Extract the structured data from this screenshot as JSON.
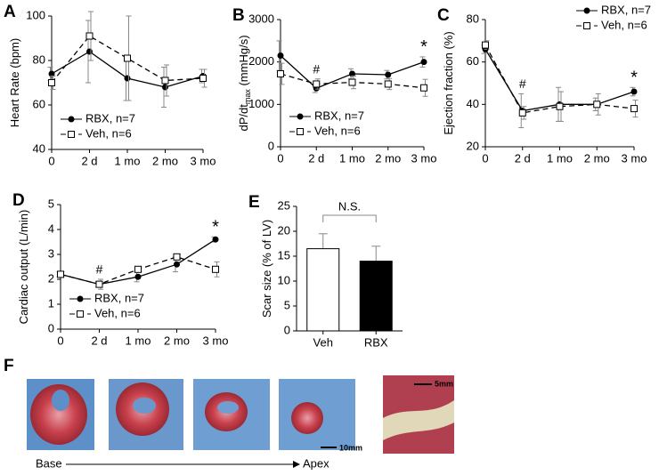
{
  "chart_data": [
    {
      "type": "line",
      "panel_label": "A",
      "ylabel": {
        "main": "Heart Rate (bpm)"
      },
      "categories": [
        "0",
        "2 d",
        "1 mo",
        "2 mo",
        "3 mo"
      ],
      "ylim": [
        40,
        100
      ],
      "yticks": [
        40,
        60,
        80,
        100
      ],
      "legend": "lower left",
      "series": [
        {
          "name": "RBX, n=7",
          "color": "#000000",
          "marker": "circle",
          "linestyle": "solid",
          "values": [
            74,
            84,
            72,
            68,
            73
          ],
          "errors": [
            3,
            14,
            10,
            9,
            3
          ]
        },
        {
          "name": "Veh, n=6",
          "color": "#000000",
          "marker": "square",
          "linestyle": "dashed",
          "values": [
            70,
            91,
            81,
            71,
            72
          ],
          "errors": [
            3,
            11,
            19,
            7,
            4
          ]
        }
      ],
      "annotations": []
    },
    {
      "type": "line",
      "panel_label": "B",
      "ylabel": {
        "main": "dP/dt",
        "sub": "max",
        "unit": " (mmHg/s)"
      },
      "categories": [
        "0",
        "2 d",
        "1 mo",
        "2 mo",
        "3 mo"
      ],
      "ylim": [
        0,
        3000
      ],
      "yticks": [
        0,
        1000,
        2000,
        3000
      ],
      "legend": "lower left",
      "series": [
        {
          "name": "RBX, n=7",
          "color": "#000000",
          "marker": "circle",
          "linestyle": "solid",
          "values": [
            2150,
            1380,
            1720,
            1700,
            2000
          ],
          "errors": [
            350,
            100,
            120,
            100,
            120
          ]
        },
        {
          "name": "Veh, n=6",
          "color": "#000000",
          "marker": "square",
          "linestyle": "dashed",
          "values": [
            1720,
            1480,
            1520,
            1480,
            1390
          ],
          "errors": [
            250,
            120,
            150,
            130,
            200
          ]
        }
      ],
      "annotations": [
        {
          "text": "#",
          "at": "2 d"
        },
        {
          "text": "*",
          "at": "3 mo"
        }
      ]
    },
    {
      "type": "line",
      "panel_label": "C",
      "ylabel": {
        "main": "Ejection fraction (%)"
      },
      "categories": [
        "0",
        "2 d",
        "1 mo",
        "2 mo",
        "3 mo"
      ],
      "ylim": [
        20,
        80
      ],
      "yticks": [
        20,
        40,
        60,
        80
      ],
      "legend": "upper right",
      "series": [
        {
          "name": "RBX, n=7",
          "color": "#000000",
          "marker": "circle",
          "linestyle": "solid",
          "values": [
            66,
            37,
            40,
            40,
            46
          ],
          "errors": [
            2,
            8,
            8,
            3,
            2
          ]
        },
        {
          "name": "Veh, n=6",
          "color": "#000000",
          "marker": "square",
          "linestyle": "dashed",
          "values": [
            68,
            36,
            39,
            40,
            38
          ],
          "errors": [
            2,
            3,
            7,
            5,
            4
          ]
        }
      ],
      "annotations": [
        {
          "text": "#",
          "at": "2 d"
        },
        {
          "text": "*",
          "at": "3 mo"
        }
      ]
    },
    {
      "type": "line",
      "panel_label": "D",
      "ylabel": {
        "main": "Cardiac output (L/min)"
      },
      "categories": [
        "0",
        "2 d",
        "1 mo",
        "2 mo",
        "3 mo"
      ],
      "ylim": [
        0,
        5
      ],
      "yticks": [
        0,
        1,
        2,
        3,
        4,
        5
      ],
      "legend": "lower left",
      "series": [
        {
          "name": "RBX, n=7",
          "color": "#000000",
          "marker": "circle",
          "linestyle": "solid",
          "values": [
            2.2,
            1.8,
            2.1,
            2.6,
            3.6
          ],
          "errors": [
            0.1,
            0.1,
            0.2,
            0.3,
            0.1
          ]
        },
        {
          "name": "Veh, n=6",
          "color": "#000000",
          "marker": "square",
          "linestyle": "dashed",
          "values": [
            2.2,
            1.8,
            2.4,
            2.9,
            2.4
          ],
          "errors": [
            0.1,
            0.2,
            0.1,
            0.1,
            0.3
          ]
        }
      ],
      "annotations": [
        {
          "text": "#",
          "at": "2 d"
        },
        {
          "text": "*",
          "at": "3 mo"
        }
      ]
    },
    {
      "type": "bar",
      "panel_label": "E",
      "ylabel": {
        "main": "Scar size (% of LV)"
      },
      "categories": [
        "Veh",
        "RBX"
      ],
      "values": [
        16.5,
        14
      ],
      "errors": [
        3,
        3
      ],
      "colors": [
        "#ffffff",
        "#000000"
      ],
      "ylim": [
        0,
        25
      ],
      "yticks": [
        0,
        5,
        10,
        15,
        20,
        25
      ],
      "bracket": "N.S."
    }
  ],
  "panel_f": {
    "label": "F",
    "scale_bars": [
      "10mm",
      "5mm"
    ],
    "axis_start": "Base",
    "axis_end": "Apex"
  }
}
